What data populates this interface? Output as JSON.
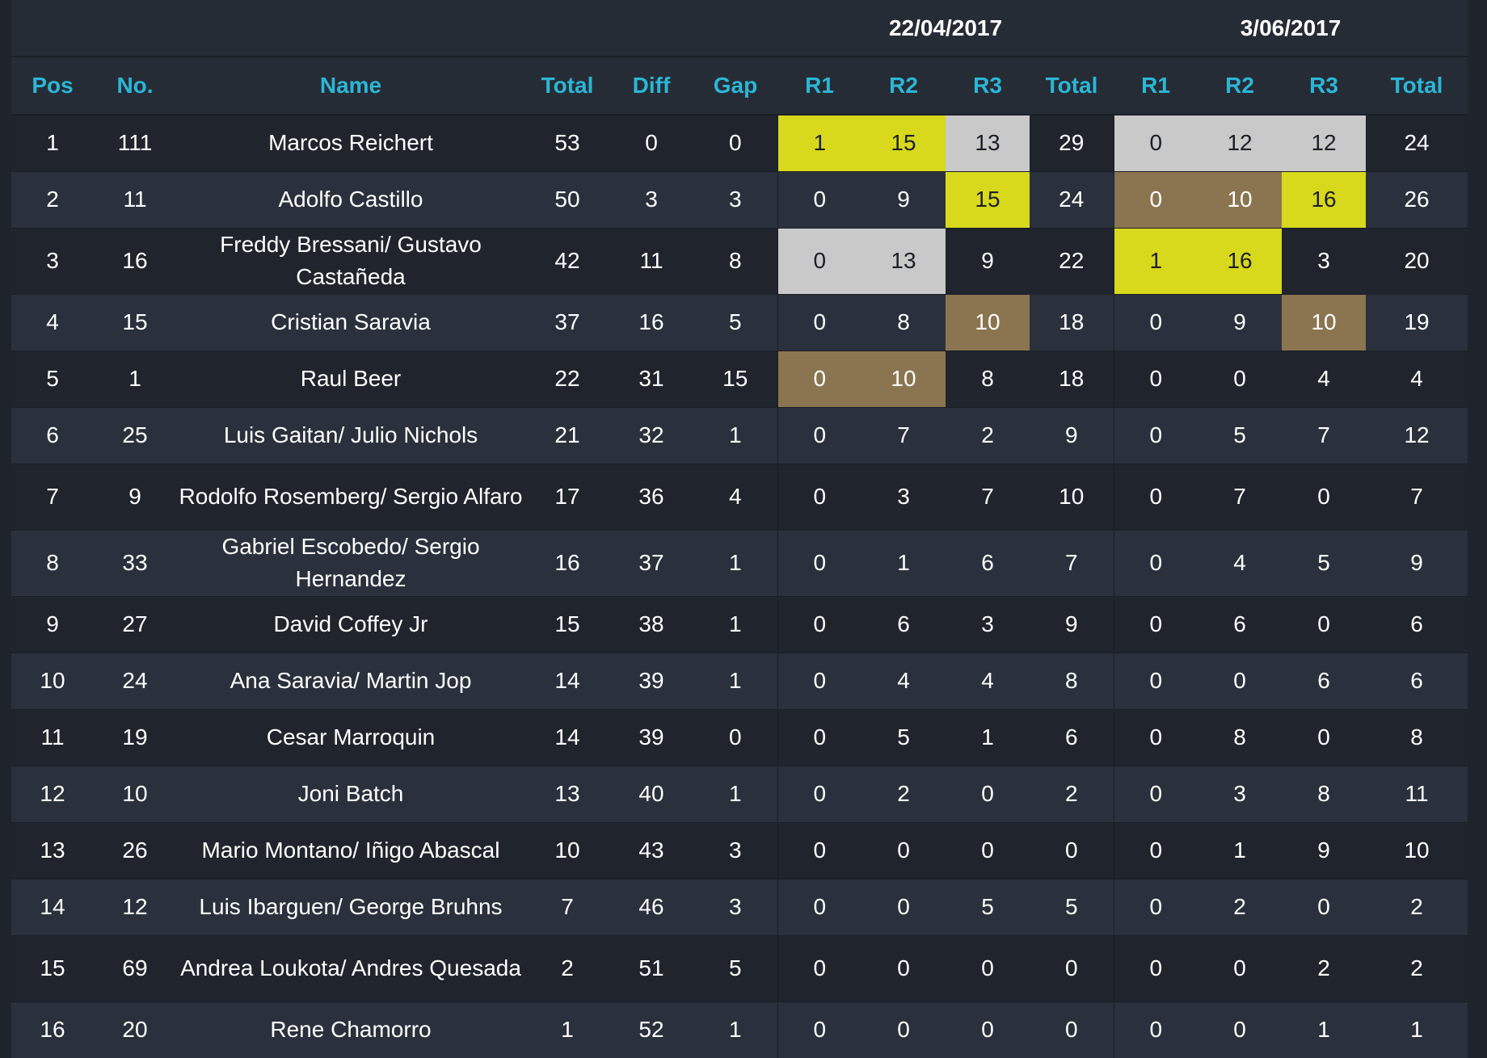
{
  "events": [
    {
      "date": "22/04/2017"
    },
    {
      "date": "3/06/2017"
    }
  ],
  "headers": {
    "pos": "Pos",
    "no": "No.",
    "name": "Name",
    "total": "Total",
    "diff": "Diff",
    "gap": "Gap",
    "r1": "R1",
    "r2": "R2",
    "r3": "R3",
    "event_total": "Total"
  },
  "colors": {
    "header_text": "#2bb6d6",
    "first_place": "#d8d81c",
    "second_place": "#c9c9c9",
    "third_place": "#8a7550"
  },
  "rows": [
    {
      "pos": "1",
      "no": "111",
      "name": "Marcos Reichert",
      "total": "53",
      "diff": "0",
      "gap": "0",
      "e1": {
        "r1": "1",
        "r2": "15",
        "r3": "13",
        "total": "29"
      },
      "e2": {
        "r1": "0",
        "r2": "12",
        "r3": "12",
        "total": "24"
      }
    },
    {
      "pos": "2",
      "no": "11",
      "name": "Adolfo Castillo",
      "total": "50",
      "diff": "3",
      "gap": "3",
      "e1": {
        "r1": "0",
        "r2": "9",
        "r3": "15",
        "total": "24"
      },
      "e2": {
        "r1": "0",
        "r2": "10",
        "r3": "16",
        "total": "26"
      }
    },
    {
      "pos": "3",
      "no": "16",
      "name": "Freddy Bressani/ Gustavo Castañeda",
      "total": "42",
      "diff": "11",
      "gap": "8",
      "e1": {
        "r1": "0",
        "r2": "13",
        "r3": "9",
        "total": "22"
      },
      "e2": {
        "r1": "1",
        "r2": "16",
        "r3": "3",
        "total": "20"
      }
    },
    {
      "pos": "4",
      "no": "15",
      "name": "Cristian Saravia",
      "total": "37",
      "diff": "16",
      "gap": "5",
      "e1": {
        "r1": "0",
        "r2": "8",
        "r3": "10",
        "total": "18"
      },
      "e2": {
        "r1": "0",
        "r2": "9",
        "r3": "10",
        "total": "19"
      }
    },
    {
      "pos": "5",
      "no": "1",
      "name": "Raul Beer",
      "total": "22",
      "diff": "31",
      "gap": "15",
      "e1": {
        "r1": "0",
        "r2": "10",
        "r3": "8",
        "total": "18"
      },
      "e2": {
        "r1": "0",
        "r2": "0",
        "r3": "4",
        "total": "4"
      }
    },
    {
      "pos": "6",
      "no": "25",
      "name": "Luis Gaitan/ Julio Nichols",
      "total": "21",
      "diff": "32",
      "gap": "1",
      "e1": {
        "r1": "0",
        "r2": "7",
        "r3": "2",
        "total": "9"
      },
      "e2": {
        "r1": "0",
        "r2": "5",
        "r3": "7",
        "total": "12"
      }
    },
    {
      "pos": "7",
      "no": "9",
      "name": "Rodolfo Rosemberg/ Sergio Alfaro",
      "total": "17",
      "diff": "36",
      "gap": "4",
      "e1": {
        "r1": "0",
        "r2": "3",
        "r3": "7",
        "total": "10"
      },
      "e2": {
        "r1": "0",
        "r2": "7",
        "r3": "0",
        "total": "7"
      }
    },
    {
      "pos": "8",
      "no": "33",
      "name": "Gabriel Escobedo/ Sergio Hernandez",
      "total": "16",
      "diff": "37",
      "gap": "1",
      "e1": {
        "r1": "0",
        "r2": "1",
        "r3": "6",
        "total": "7"
      },
      "e2": {
        "r1": "0",
        "r2": "4",
        "r3": "5",
        "total": "9"
      }
    },
    {
      "pos": "9",
      "no": "27",
      "name": "David Coffey Jr",
      "total": "15",
      "diff": "38",
      "gap": "1",
      "e1": {
        "r1": "0",
        "r2": "6",
        "r3": "3",
        "total": "9"
      },
      "e2": {
        "r1": "0",
        "r2": "6",
        "r3": "0",
        "total": "6"
      }
    },
    {
      "pos": "10",
      "no": "24",
      "name": "Ana Saravia/ Martin Jop",
      "total": "14",
      "diff": "39",
      "gap": "1",
      "e1": {
        "r1": "0",
        "r2": "4",
        "r3": "4",
        "total": "8"
      },
      "e2": {
        "r1": "0",
        "r2": "0",
        "r3": "6",
        "total": "6"
      }
    },
    {
      "pos": "11",
      "no": "19",
      "name": "Cesar Marroquin",
      "total": "14",
      "diff": "39",
      "gap": "0",
      "e1": {
        "r1": "0",
        "r2": "5",
        "r3": "1",
        "total": "6"
      },
      "e2": {
        "r1": "0",
        "r2": "8",
        "r3": "0",
        "total": "8"
      }
    },
    {
      "pos": "12",
      "no": "10",
      "name": "Joni Batch",
      "total": "13",
      "diff": "40",
      "gap": "1",
      "e1": {
        "r1": "0",
        "r2": "2",
        "r3": "0",
        "total": "2"
      },
      "e2": {
        "r1": "0",
        "r2": "3",
        "r3": "8",
        "total": "11"
      }
    },
    {
      "pos": "13",
      "no": "26",
      "name": "Mario Montano/ Iñigo Abascal",
      "total": "10",
      "diff": "43",
      "gap": "3",
      "e1": {
        "r1": "0",
        "r2": "0",
        "r3": "0",
        "total": "0"
      },
      "e2": {
        "r1": "0",
        "r2": "1",
        "r3": "9",
        "total": "10"
      }
    },
    {
      "pos": "14",
      "no": "12",
      "name": "Luis Ibarguen/ George Bruhns",
      "total": "7",
      "diff": "46",
      "gap": "3",
      "e1": {
        "r1": "0",
        "r2": "0",
        "r3": "5",
        "total": "5"
      },
      "e2": {
        "r1": "0",
        "r2": "2",
        "r3": "0",
        "total": "2"
      }
    },
    {
      "pos": "15",
      "no": "69",
      "name": "Andrea Loukota/ Andres Quesada",
      "total": "2",
      "diff": "51",
      "gap": "5",
      "e1": {
        "r1": "0",
        "r2": "0",
        "r3": "0",
        "total": "0"
      },
      "e2": {
        "r1": "0",
        "r2": "0",
        "r3": "2",
        "total": "2"
      }
    },
    {
      "pos": "16",
      "no": "20",
      "name": "Rene Chamorro",
      "total": "1",
      "diff": "52",
      "gap": "1",
      "e1": {
        "r1": "0",
        "r2": "0",
        "r3": "0",
        "total": "0"
      },
      "e2": {
        "r1": "0",
        "r2": "0",
        "r3": "1",
        "total": "1"
      }
    }
  ]
}
